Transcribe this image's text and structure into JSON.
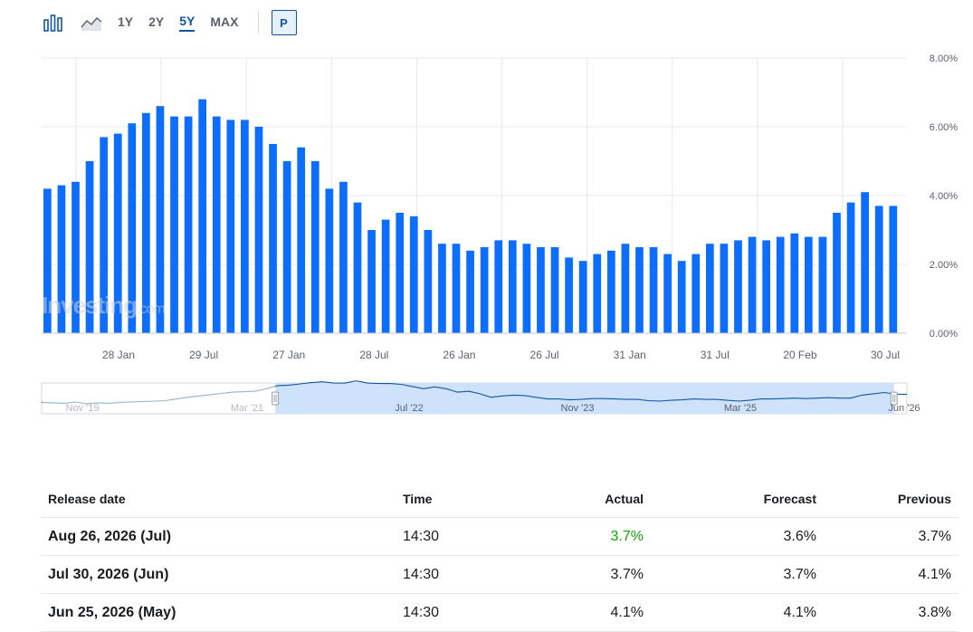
{
  "toolbar": {
    "chart_type_icons": [
      "bar-chart-icon",
      "area-chart-icon"
    ],
    "ranges": [
      "1Y",
      "2Y",
      "5Y",
      "MAX"
    ],
    "active_range": "5Y",
    "p_label": "P"
  },
  "watermark": {
    "brand": "Investing",
    "suffix": ".com"
  },
  "colors": {
    "bar": "#0d6efd",
    "grid": "#e6e9eb",
    "axis_text": "#5b616e",
    "nav_line": "#1256a0",
    "nav_fill": "#cfe2fb",
    "green": "#0ea600"
  },
  "chart_data": {
    "type": "bar",
    "ylim": [
      0,
      8
    ],
    "y_ticks": [
      "0.00%",
      "2.00%",
      "4.00%",
      "6.00%",
      "8.00%"
    ],
    "x_tick_labels": [
      "28 Jan",
      "29 Jul",
      "27 Jan",
      "28 Jul",
      "26 Jan",
      "26 Jul",
      "31 Jan",
      "31 Jul",
      "20 Feb",
      "30 Jul"
    ],
    "grid": true,
    "values": [
      4.2,
      4.3,
      4.4,
      5.0,
      5.7,
      5.8,
      6.1,
      6.4,
      6.6,
      6.3,
      6.3,
      6.8,
      6.3,
      6.2,
      6.2,
      6.0,
      5.5,
      5.0,
      5.4,
      5.0,
      4.2,
      4.4,
      3.8,
      3.0,
      3.3,
      3.5,
      3.4,
      3.0,
      2.6,
      2.6,
      2.4,
      2.5,
      2.7,
      2.7,
      2.6,
      2.5,
      2.5,
      2.2,
      2.1,
      2.3,
      2.4,
      2.6,
      2.5,
      2.5,
      2.3,
      2.1,
      2.3,
      2.6,
      2.6,
      2.7,
      2.8,
      2.7,
      2.8,
      2.9,
      2.8,
      2.8,
      3.5,
      3.8,
      4.1,
      3.7,
      3.7
    ]
  },
  "navigator": {
    "labels": [
      "Nov '19",
      "Mar '21",
      "Jul '22",
      "Nov '23",
      "Mar '25",
      "Jun '26"
    ],
    "selected_range_fraction": [
      0.27,
      0.985
    ]
  },
  "table": {
    "headers": {
      "release_date": "Release date",
      "time": "Time",
      "actual": "Actual",
      "forecast": "Forecast",
      "previous": "Previous"
    },
    "rows": [
      {
        "date": "Aug 26, 2026 (Jul)",
        "time": "14:30",
        "actual": "3.7%",
        "forecast": "3.6%",
        "previous": "3.7%",
        "actual_color": "green"
      },
      {
        "date": "Jul 30, 2026 (Jun)",
        "time": "14:30",
        "actual": "3.7%",
        "forecast": "3.7%",
        "previous": "4.1%",
        "actual_color": ""
      },
      {
        "date": "Jun 25, 2026 (May)",
        "time": "14:30",
        "actual": "4.1%",
        "forecast": "4.1%",
        "previous": "3.8%",
        "actual_color": ""
      }
    ]
  }
}
